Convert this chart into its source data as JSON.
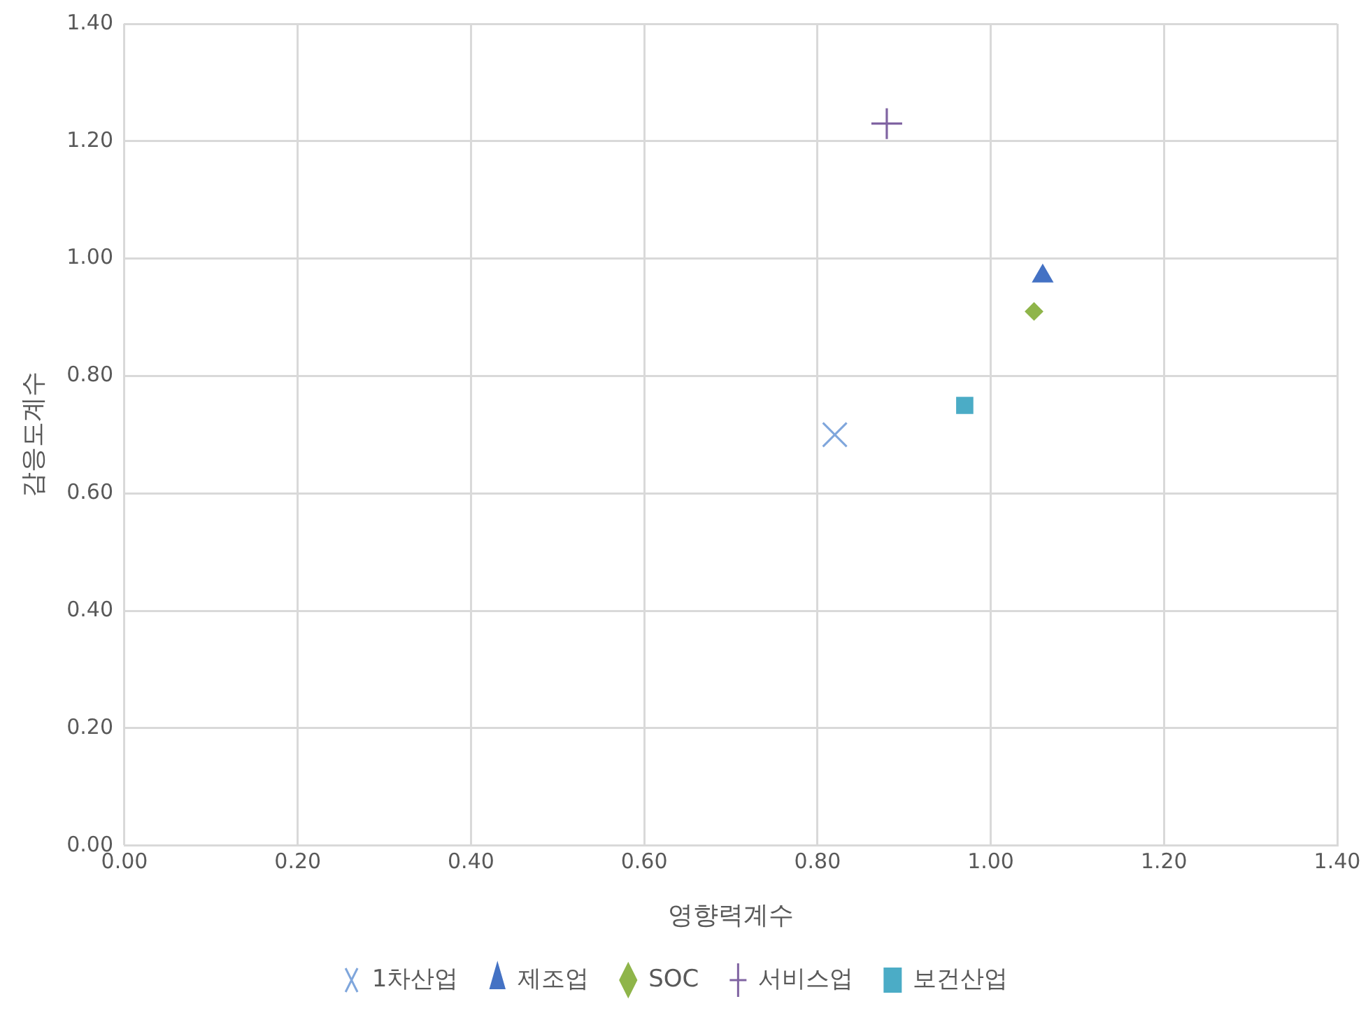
{
  "chart_data": {
    "type": "scatter",
    "xlabel": "영향력계수",
    "ylabel": "감응도계수",
    "xlim": [
      0,
      1.4
    ],
    "xticks": [
      {
        "value": 0,
        "label": "0.00"
      },
      {
        "value": 0.2,
        "label": "0.20"
      },
      {
        "value": 0.4,
        "label": "0.40"
      },
      {
        "value": 0.6,
        "label": "0.60"
      },
      {
        "value": 0.8,
        "label": "0.80"
      },
      {
        "value": 1.0,
        "label": "1.00"
      },
      {
        "value": 1.2,
        "label": "1.20"
      },
      {
        "value": 1.4,
        "label": "1.40"
      }
    ],
    "ylim": [
      0,
      1.4
    ],
    "yticks": [
      {
        "value": 0,
        "label": "0.00"
      },
      {
        "value": 0.2,
        "label": "0.20"
      },
      {
        "value": 0.4,
        "label": "0.40"
      },
      {
        "value": 0.6,
        "label": "0.60"
      },
      {
        "value": 0.8,
        "label": "0.80"
      },
      {
        "value": 1.0,
        "label": "1.00"
      },
      {
        "value": 1.2,
        "label": "1.20"
      },
      {
        "value": 1.4,
        "label": "1.40"
      }
    ],
    "grid": true,
    "legend": "bottom",
    "series": [
      {
        "name": "1차산업",
        "color": "#7fa6dc",
        "marker": "cross",
        "x": [
          0.82
        ],
        "values": [
          0.7
        ]
      },
      {
        "name": "제조업",
        "color": "#4472c4",
        "marker": "triangle",
        "x": [
          1.06
        ],
        "values": [
          0.97
        ]
      },
      {
        "name": "SOC",
        "color": "#8fb54a",
        "marker": "diamond",
        "x": [
          1.05
        ],
        "values": [
          0.91
        ]
      },
      {
        "name": "서비스업",
        "color": "#8064a2",
        "x": [
          0.88
        ],
        "values": [
          1.23
        ]
      },
      {
        "name": "보건산업",
        "color": "#4bacc6",
        "marker": "square",
        "x": [
          0.97
        ],
        "values": [
          0.75
        ]
      }
    ]
  }
}
